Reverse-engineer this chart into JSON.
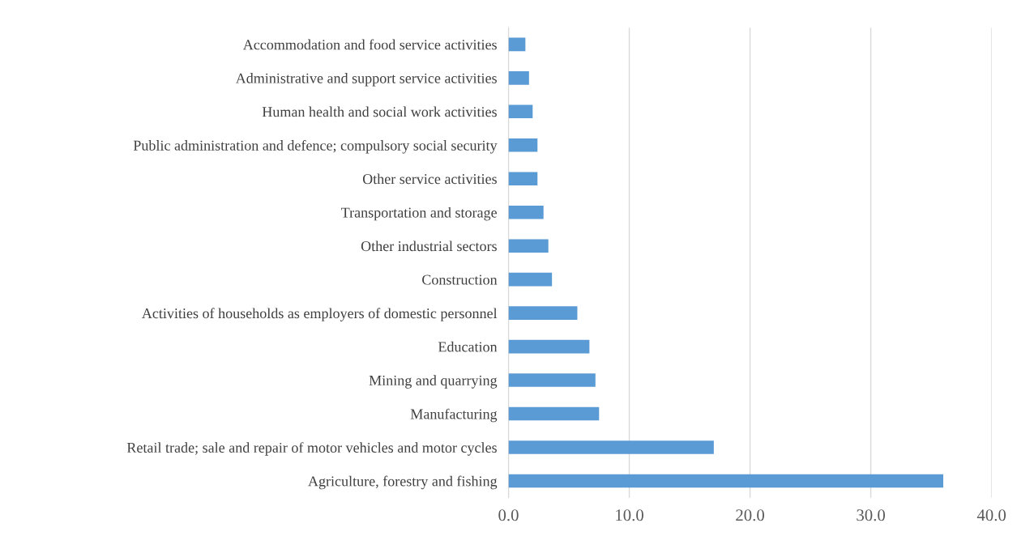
{
  "chart_data": {
    "type": "bar",
    "orientation": "horizontal",
    "categories": [
      "Accommodation and food service activities",
      "Administrative and support service activities",
      "Human health and social work activities",
      "Public administration and defence; compulsory social security",
      "Other service activities",
      "Transportation and storage",
      "Other industrial sectors",
      "Construction",
      "Activities of households as employers of domestic personnel",
      "Education",
      "Mining and quarrying",
      "Manufacturing",
      "Retail trade; sale and repair of motor vehicles and motor cycles",
      "Agriculture, forestry and fishing"
    ],
    "values": [
      1.4,
      1.7,
      2.0,
      2.4,
      2.4,
      2.9,
      3.3,
      3.6,
      5.7,
      6.7,
      7.2,
      7.5,
      17.0,
      36.0
    ],
    "color": "#5b9bd5",
    "xlim": [
      0,
      40
    ],
    "xticks": [
      {
        "value": 0,
        "label": "0.0"
      },
      {
        "value": 10,
        "label": "10.0"
      },
      {
        "value": 20,
        "label": "20.0"
      },
      {
        "value": 30,
        "label": "30.0"
      },
      {
        "value": 40,
        "label": "40.0"
      }
    ],
    "grid": "x"
  }
}
